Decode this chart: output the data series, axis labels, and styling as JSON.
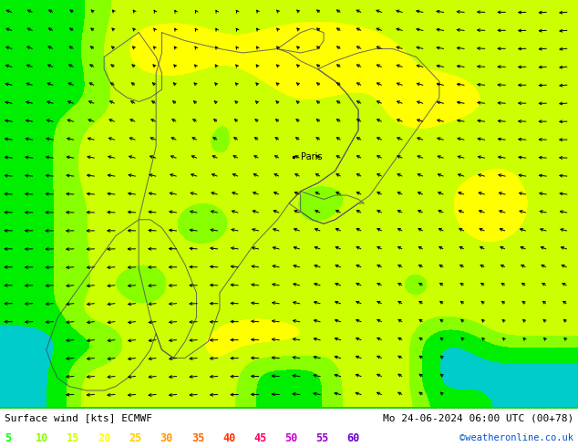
{
  "title_left": "Surface wind [kts] ECMWF",
  "title_right": "Mo 24-06-2024 06:00 UTC (00+78)",
  "credit": "©weatheronline.co.uk",
  "legend_values": [
    5,
    10,
    15,
    20,
    25,
    30,
    35,
    40,
    45,
    50,
    55,
    60
  ],
  "legend_colors": [
    "#00ff00",
    "#88ff00",
    "#ccff00",
    "#ffff00",
    "#ffcc00",
    "#ff9900",
    "#ff6600",
    "#ff3300",
    "#ff0066",
    "#cc00cc",
    "#9900cc",
    "#6600cc"
  ],
  "colormap_boundaries": [
    0,
    5,
    10,
    15,
    20,
    25,
    30,
    35,
    40,
    45,
    50,
    55,
    60,
    80
  ],
  "colormap_colors": [
    "#00cccc",
    "#00ee00",
    "#88ff00",
    "#ccff00",
    "#ffff00",
    "#ffcc00",
    "#ff9900",
    "#ff6600",
    "#ff3300",
    "#ff0066",
    "#cc00cc",
    "#9900cc",
    "#6600cc"
  ],
  "background_color": "#ffffff",
  "figsize": [
    6.34,
    4.9
  ],
  "dpi": 100
}
